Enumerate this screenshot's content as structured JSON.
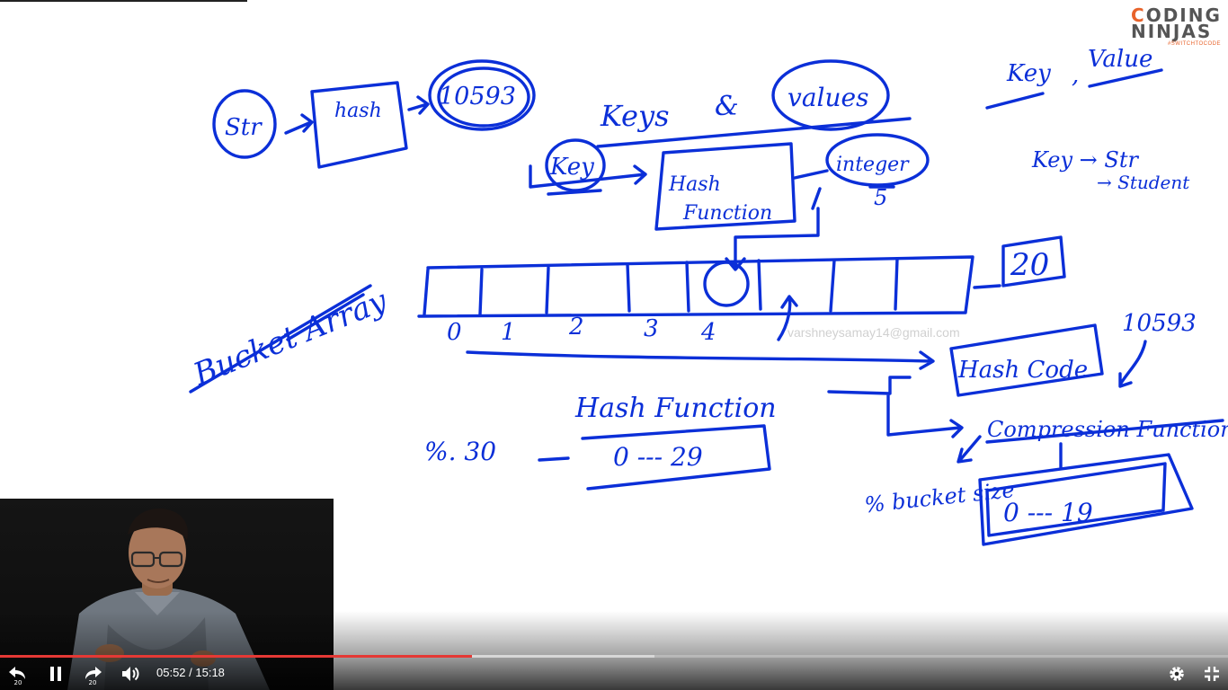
{
  "brand": {
    "line1_accent": "C",
    "line1_rest": "ODING",
    "line2": "NINJAS",
    "tagline": "#SWITCHTOCODE",
    "accent_color": "#e8632b"
  },
  "watermark": "varshneysamay14@gmail.com",
  "whiteboard": {
    "ink_color": "#0b2fd8",
    "flow": {
      "input": "Str",
      "box": "hash",
      "output": "10593"
    },
    "title": {
      "left": "Keys",
      "amp": "&",
      "right": "values"
    },
    "key_label": "Key",
    "hash_fn_line1": "Hash",
    "hash_fn_line2": "Function",
    "integer_label": "integer",
    "integer_value": "5",
    "array_size": "20",
    "bucket_label": "Bucket Array",
    "indices": [
      "0",
      "1",
      "2",
      "3",
      "4"
    ],
    "hash_function_label": "Hash Function",
    "hash_code_label": "Hash Code",
    "compression_label": "Compression Function",
    "hash_code_value": "10593",
    "mod_30": "%. 30",
    "range_30": "0 --- 29",
    "mod_bucket": "% bucket size",
    "range_bucket": "0 --- 19",
    "kv_heading_key": "Key",
    "kv_heading_value": "Value",
    "kv_note_1": "Key → Str",
    "kv_note_2": "→ Student"
  },
  "player": {
    "current_time": "05:52",
    "duration": "15:18",
    "time_display": "05:52 / 15:18",
    "progress": 0.384,
    "buffered": 0.533,
    "rewind_label": "20",
    "forward_label": "20",
    "progress_color": "#e53935"
  }
}
